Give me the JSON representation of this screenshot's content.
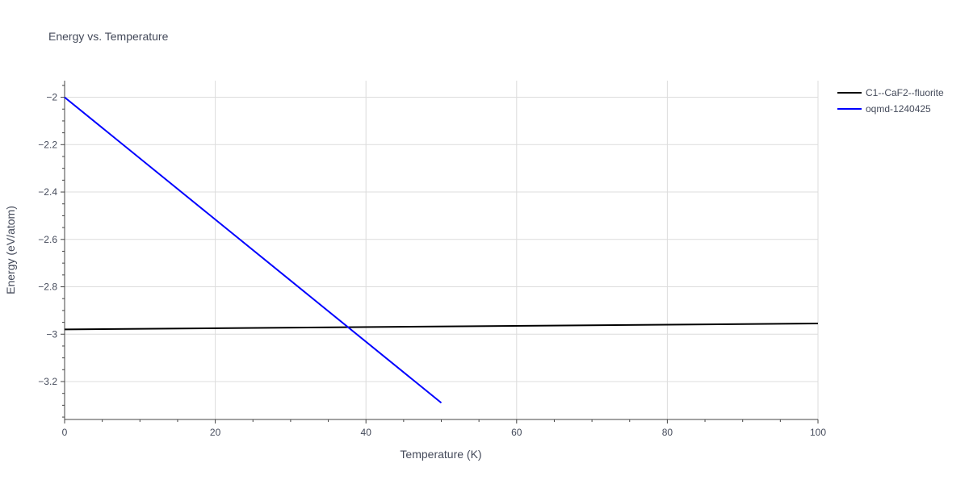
{
  "chart_data": {
    "type": "line",
    "title": "Energy vs. Temperature",
    "xlabel": "Temperature (K)",
    "ylabel": "Energy (eV/atom)",
    "xlim": [
      0,
      100
    ],
    "ylim": [
      -3.36,
      -1.93
    ],
    "x_ticks": [
      0,
      20,
      40,
      60,
      80,
      100
    ],
    "x_tick_labels": [
      "0",
      "20",
      "40",
      "60",
      "80",
      "100"
    ],
    "y_ticks": [
      -2,
      -2.2,
      -2.4,
      -2.6,
      -2.8,
      -3,
      -3.2
    ],
    "y_tick_labels": [
      "−2",
      "−2.2",
      "−2.4",
      "−2.6",
      "−2.8",
      "−3",
      "−3.2"
    ],
    "grid": true,
    "legend_position": "top-right outside",
    "series": [
      {
        "name": "C1--CaF2--fluorite",
        "color": "#000000",
        "x": [
          0,
          100
        ],
        "y": [
          -2.98,
          -2.955
        ]
      },
      {
        "name": "oqmd-1240425",
        "color": "#0000ff",
        "x": [
          0,
          50
        ],
        "y": [
          -2.0,
          -3.29
        ]
      }
    ]
  }
}
